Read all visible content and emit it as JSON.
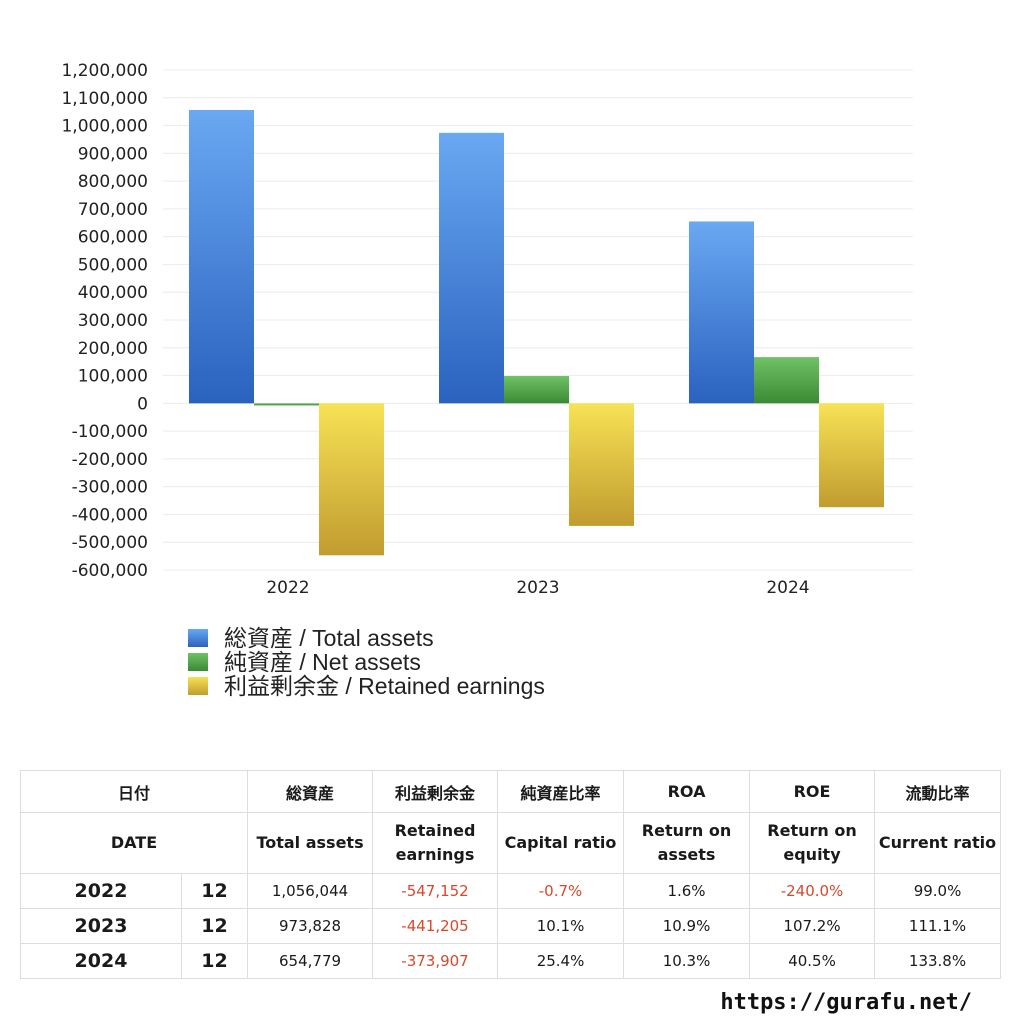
{
  "chart_data": {
    "type": "bar",
    "categories": [
      "2022",
      "2023",
      "2024"
    ],
    "series": [
      {
        "name": "総資産 / Total assets",
        "values": [
          1056044,
          973828,
          654779
        ],
        "color_top": "#6aa8f2",
        "color_bottom": "#2a62bf"
      },
      {
        "name": "純資産 / Net assets",
        "values": [
          -7392,
          98356,
          166314
        ],
        "color_top": "#6fc265",
        "color_bottom": "#3b8a35"
      },
      {
        "name": "利益剰余金 / Retained earnings",
        "values": [
          -547152,
          -441205,
          -373907
        ],
        "color_top": "#f7e255",
        "color_bottom": "#c19c30"
      }
    ],
    "ylim": [
      -600000,
      1200000
    ],
    "yticks": [
      "1,200,000",
      "1,100,000",
      "1,000,000",
      "900,000",
      "800,000",
      "700,000",
      "600,000",
      "500,000",
      "400,000",
      "300,000",
      "200,000",
      "100,000",
      "0",
      "-100,000",
      "-200,000",
      "-300,000",
      "-400,000",
      "-500,000",
      "-600,000"
    ],
    "grid": true,
    "legend_position": "bottom-left"
  },
  "table": {
    "header_jp": [
      "日付",
      "総資産",
      "利益剰余金",
      "純資産比率",
      "ROA",
      "ROE",
      "流動比率"
    ],
    "header_en": [
      "DATE",
      "Total assets",
      "Retained earnings",
      "Capital ratio",
      "Return on assets",
      "Return on equity",
      "Current ratio"
    ],
    "rows": [
      {
        "year": "2022",
        "month": "12",
        "total_assets": "1,056,044",
        "retained_earnings": "-547,152",
        "capital_ratio": "-0.7%",
        "roa": "1.6%",
        "roe": "-240.0%",
        "current_ratio": "99.0%"
      },
      {
        "year": "2023",
        "month": "12",
        "total_assets": "973,828",
        "retained_earnings": "-441,205",
        "capital_ratio": "10.1%",
        "roa": "10.9%",
        "roe": "107.2%",
        "current_ratio": "111.1%"
      },
      {
        "year": "2024",
        "month": "12",
        "total_assets": "654,779",
        "retained_earnings": "-373,907",
        "capital_ratio": "25.4%",
        "roa": "10.3%",
        "roe": "40.5%",
        "current_ratio": "133.8%"
      }
    ],
    "negative_color": "#d9482b"
  },
  "footer": {
    "url": "https://gurafu.net/"
  }
}
